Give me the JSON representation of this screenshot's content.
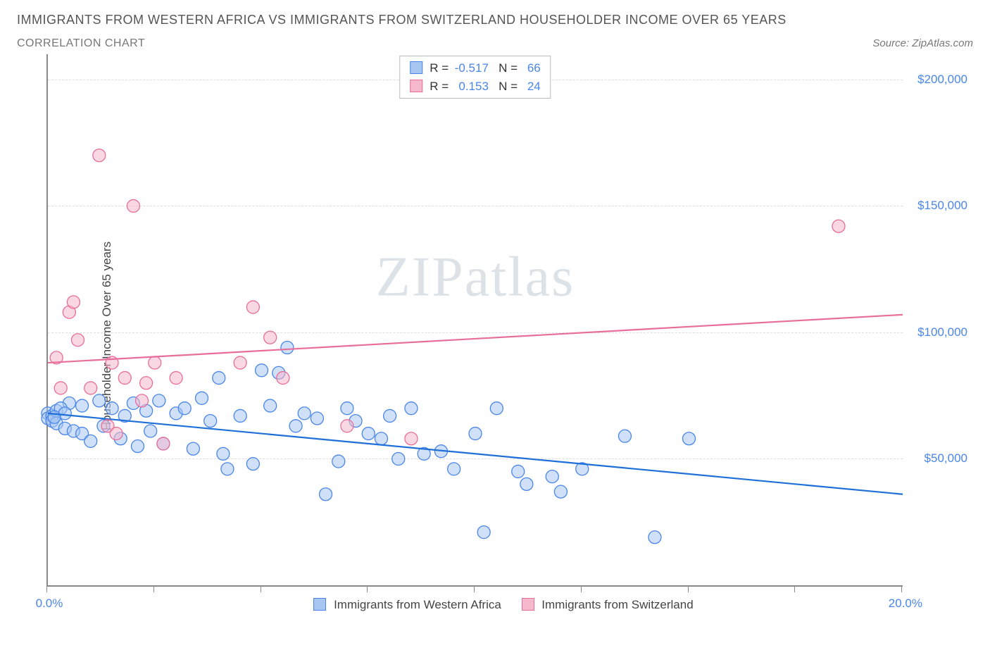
{
  "title": "IMMIGRANTS FROM WESTERN AFRICA VS IMMIGRANTS FROM SWITZERLAND HOUSEHOLDER INCOME OVER 65 YEARS",
  "subtitle": "CORRELATION CHART",
  "source_prefix": "Source: ",
  "source_name": "ZipAtlas.com",
  "ylabel": "Householder Income Over 65 years",
  "watermark": "ZIPatlas",
  "chart": {
    "type": "scatter",
    "x_min": 0.0,
    "x_max": 20.0,
    "y_min": 0,
    "y_max": 210000,
    "y_gridlines": [
      50000,
      100000,
      150000,
      200000
    ],
    "y_tick_labels": [
      "$50,000",
      "$100,000",
      "$150,000",
      "$200,000"
    ],
    "x_tick_positions": [
      0,
      2.5,
      5,
      7.5,
      10,
      12.5,
      15,
      17.5,
      20
    ],
    "x_end_labels": [
      "0.0%",
      "20.0%"
    ],
    "background_color": "#ffffff",
    "grid_color": "#dddddd",
    "axis_color": "#888888",
    "label_color": "#4a86e8",
    "marker_radius": 9,
    "marker_opacity": 0.55,
    "line_width": 2.2
  },
  "series": [
    {
      "name": "Immigrants from Western Africa",
      "color_fill": "#a7c7f2",
      "color_stroke": "#4a86e8",
      "line_color": "#1f6fd8",
      "R": "-0.517",
      "N": "66",
      "trend": {
        "x1": 0,
        "y1": 68000,
        "x2": 20,
        "y2": 36000
      },
      "points": [
        [
          0.0,
          68000
        ],
        [
          0.0,
          66000
        ],
        [
          0.1,
          67000
        ],
        [
          0.1,
          65000
        ],
        [
          0.2,
          69000
        ],
        [
          0.2,
          64000
        ],
        [
          0.4,
          62000
        ],
        [
          0.5,
          72000
        ],
        [
          0.6,
          61000
        ],
        [
          0.8,
          60000
        ],
        [
          0.8,
          71000
        ],
        [
          1.0,
          57000
        ],
        [
          1.2,
          73000
        ],
        [
          1.3,
          63000
        ],
        [
          1.5,
          70000
        ],
        [
          1.7,
          58000
        ],
        [
          1.8,
          67000
        ],
        [
          2.0,
          72000
        ],
        [
          2.1,
          55000
        ],
        [
          2.3,
          69000
        ],
        [
          2.4,
          61000
        ],
        [
          2.6,
          73000
        ],
        [
          2.7,
          56000
        ],
        [
          3.0,
          68000
        ],
        [
          3.2,
          70000
        ],
        [
          3.4,
          54000
        ],
        [
          3.6,
          74000
        ],
        [
          3.8,
          65000
        ],
        [
          4.0,
          82000
        ],
        [
          4.1,
          52000
        ],
        [
          4.2,
          46000
        ],
        [
          4.5,
          67000
        ],
        [
          4.8,
          48000
        ],
        [
          5.0,
          85000
        ],
        [
          5.2,
          71000
        ],
        [
          5.4,
          84000
        ],
        [
          5.6,
          94000
        ],
        [
          5.8,
          63000
        ],
        [
          6.0,
          68000
        ],
        [
          6.3,
          66000
        ],
        [
          6.5,
          36000
        ],
        [
          6.8,
          49000
        ],
        [
          7.0,
          70000
        ],
        [
          7.2,
          65000
        ],
        [
          7.5,
          60000
        ],
        [
          7.8,
          58000
        ],
        [
          8.0,
          67000
        ],
        [
          8.2,
          50000
        ],
        [
          8.5,
          70000
        ],
        [
          8.8,
          52000
        ],
        [
          9.2,
          53000
        ],
        [
          9.5,
          46000
        ],
        [
          10.0,
          60000
        ],
        [
          10.2,
          21000
        ],
        [
          10.5,
          70000
        ],
        [
          11.0,
          45000
        ],
        [
          11.2,
          40000
        ],
        [
          11.8,
          43000
        ],
        [
          12.0,
          37000
        ],
        [
          12.5,
          46000
        ],
        [
          13.5,
          59000
        ],
        [
          14.2,
          19000
        ],
        [
          15.0,
          58000
        ],
        [
          0.3,
          70000
        ],
        [
          0.4,
          68000
        ],
        [
          0.15,
          66500
        ]
      ]
    },
    {
      "name": "Immigrants from Switzerland",
      "color_fill": "#f5b8cc",
      "color_stroke": "#e86e9a",
      "line_color": "#e86e9a",
      "R": "0.153",
      "N": "24",
      "trend": {
        "x1": 0,
        "y1": 88000,
        "x2": 20,
        "y2": 107000
      },
      "points": [
        [
          0.2,
          90000
        ],
        [
          0.3,
          78000
        ],
        [
          0.5,
          108000
        ],
        [
          0.6,
          112000
        ],
        [
          0.7,
          97000
        ],
        [
          1.0,
          78000
        ],
        [
          1.2,
          170000
        ],
        [
          1.4,
          63000
        ],
        [
          1.5,
          88000
        ],
        [
          1.6,
          60000
        ],
        [
          1.8,
          82000
        ],
        [
          2.0,
          150000
        ],
        [
          2.2,
          73000
        ],
        [
          2.3,
          80000
        ],
        [
          2.5,
          88000
        ],
        [
          2.7,
          56000
        ],
        [
          3.0,
          82000
        ],
        [
          4.5,
          88000
        ],
        [
          4.8,
          110000
        ],
        [
          5.2,
          98000
        ],
        [
          5.5,
          82000
        ],
        [
          7.0,
          63000
        ],
        [
          8.5,
          58000
        ],
        [
          18.5,
          142000
        ]
      ]
    }
  ],
  "stats_labels": {
    "R": "R =",
    "N": "N ="
  }
}
